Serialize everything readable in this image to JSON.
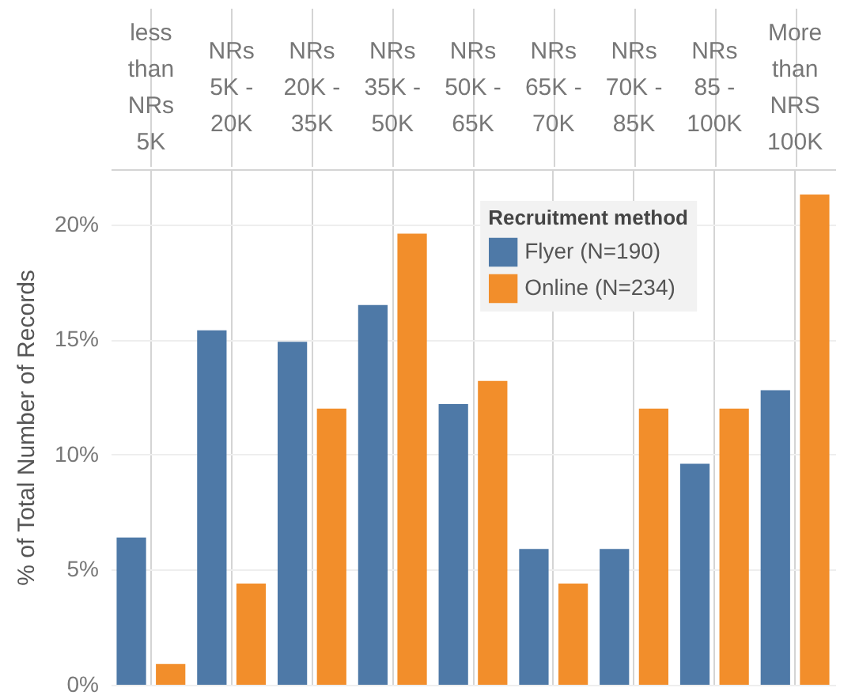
{
  "chart_data": {
    "type": "bar",
    "ylabel": "% of Total Number of Records",
    "legend_title": "Recruitment method",
    "categories": [
      "less than NRs 5K",
      "NRs 5K - 20K",
      "NRs 20K - 35K",
      "NRs 35K - 50K",
      "NRs 50K - 65K",
      "NRs 65K - 70K",
      "NRs 70K - 85K",
      "NRs 85 - 100K",
      "More than NRS 100K"
    ],
    "series": [
      {
        "name": "Flyer (N=190)",
        "color": "#4e79a7",
        "values": [
          6.4,
          15.4,
          14.9,
          16.5,
          12.2,
          5.9,
          5.9,
          9.6,
          12.8
        ]
      },
      {
        "name": "Online (N=234)",
        "color": "#f28e2b",
        "values": [
          0.9,
          4.4,
          12.0,
          19.6,
          13.2,
          4.4,
          12.0,
          12.0,
          21.3
        ]
      }
    ],
    "ylim": [
      0,
      22.4
    ],
    "yticks": [
      {
        "value": 0,
        "label": "0%"
      },
      {
        "value": 5,
        "label": "5%"
      },
      {
        "value": 10,
        "label": "10%"
      },
      {
        "value": 15,
        "label": "15%"
      },
      {
        "value": 20,
        "label": "20%"
      }
    ],
    "grid": true,
    "legend": "top right"
  }
}
